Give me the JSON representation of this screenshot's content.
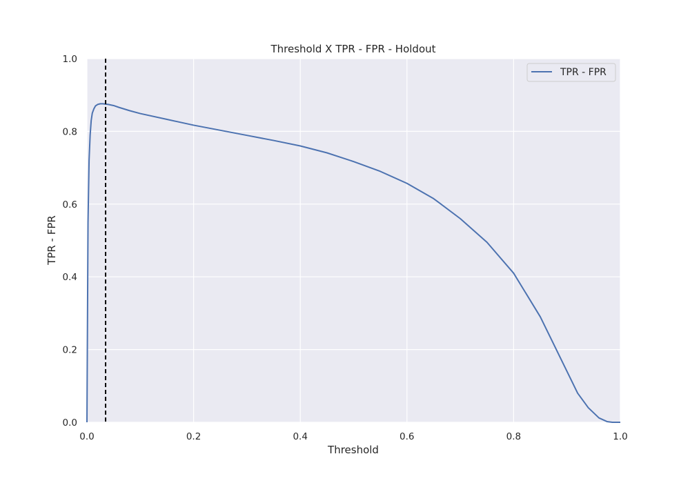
{
  "colors": {
    "plot_background": "#EAEAF2",
    "grid": "#FFFFFF",
    "series_line": "#4C72B0",
    "threshold_marker": "#000000"
  },
  "chart_data": {
    "type": "line",
    "title": "Threshold X TPR - FPR - Holdout",
    "xlabel": "Threshold",
    "ylabel": "TPR - FPR",
    "xlim": [
      0.0,
      1.0
    ],
    "ylim": [
      0.0,
      1.0
    ],
    "xticks": [
      "0.0",
      "0.2",
      "0.4",
      "0.6",
      "0.8",
      "1.0"
    ],
    "yticks": [
      "0.0",
      "0.2",
      "0.4",
      "0.6",
      "0.8",
      "1.0"
    ],
    "grid": true,
    "legend_position": "top-right",
    "series": [
      {
        "name": "TPR - FPR",
        "x": [
          0.0,
          0.002,
          0.004,
          0.006,
          0.008,
          0.01,
          0.013,
          0.016,
          0.02,
          0.025,
          0.03,
          0.035,
          0.04,
          0.05,
          0.06,
          0.08,
          0.1,
          0.15,
          0.2,
          0.25,
          0.3,
          0.35,
          0.4,
          0.45,
          0.5,
          0.55,
          0.6,
          0.65,
          0.7,
          0.75,
          0.8,
          0.85,
          0.88,
          0.9,
          0.92,
          0.94,
          0.96,
          0.975,
          0.985,
          1.0
        ],
        "y": [
          0.0,
          0.55,
          0.72,
          0.79,
          0.83,
          0.85,
          0.862,
          0.87,
          0.874,
          0.876,
          0.876,
          0.875,
          0.874,
          0.871,
          0.866,
          0.857,
          0.849,
          0.833,
          0.817,
          0.803,
          0.789,
          0.775,
          0.76,
          0.741,
          0.717,
          0.69,
          0.657,
          0.615,
          0.56,
          0.495,
          0.41,
          0.29,
          0.2,
          0.14,
          0.08,
          0.04,
          0.012,
          0.002,
          0.0,
          0.0
        ]
      }
    ],
    "vertical_line": {
      "x": 0.035,
      "style": "dashed"
    }
  }
}
